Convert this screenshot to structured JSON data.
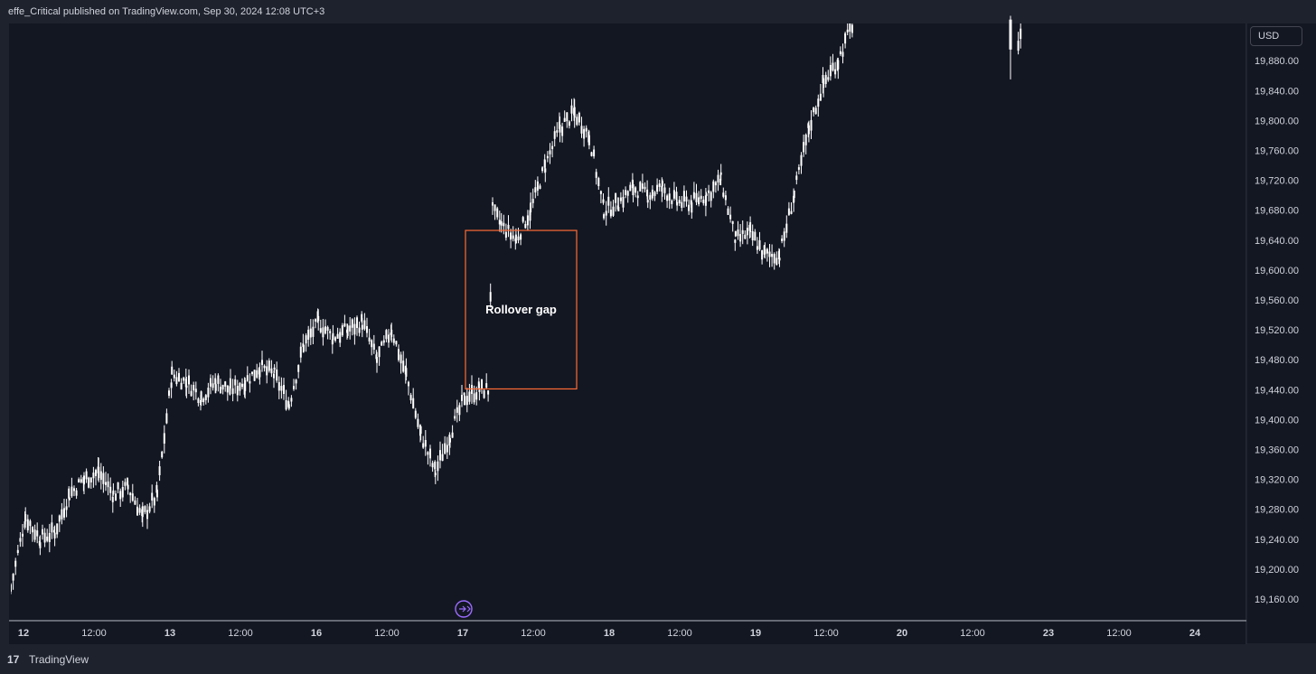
{
  "header": {
    "published_text": "effe_Critical published on TradingView.com, Sep 30, 2024 12:08 UTC+3"
  },
  "currency_label": "USD",
  "footer": {
    "logo_glyph": "17",
    "brand": "TradingView"
  },
  "colors": {
    "background": "#131722",
    "frame": "#1e222d",
    "candle": "#ffffff",
    "annotation_border": "#ff6b35",
    "text": "#d1d4dc",
    "marker": "#9c6bff"
  },
  "chart_data": {
    "type": "candlestick",
    "title": "",
    "xlabel": "",
    "ylabel": "",
    "y_ticks": [
      "19,160.00",
      "19,200.00",
      "19,240.00",
      "19,280.00",
      "19,320.00",
      "19,360.00",
      "19,400.00",
      "19,440.00",
      "19,480.00",
      "19,520.00",
      "19,560.00",
      "19,600.00",
      "19,640.00",
      "19,680.00",
      "19,720.00",
      "19,760.00",
      "19,800.00",
      "19,840.00",
      "19,880.00"
    ],
    "ylim": [
      19135,
      19930
    ],
    "x_ticks": [
      "12",
      "12:00",
      "13",
      "12:00",
      "16",
      "12:00",
      "17",
      "12:00",
      "18",
      "12:00",
      "19",
      "12:00",
      "20",
      "12:00",
      "23",
      "12:00",
      "24"
    ],
    "grid": false,
    "price_path": [
      [
        0,
        19175
      ],
      [
        1,
        19270
      ],
      [
        2,
        19240
      ],
      [
        3,
        19250
      ],
      [
        4,
        19300
      ],
      [
        5,
        19320
      ],
      [
        6,
        19330
      ],
      [
        7,
        19300
      ],
      [
        8,
        19310
      ],
      [
        9,
        19270
      ],
      [
        10,
        19300
      ],
      [
        11,
        19460
      ],
      [
        12,
        19450
      ],
      [
        13,
        19430
      ],
      [
        14,
        19450
      ],
      [
        15,
        19440
      ],
      [
        16,
        19450
      ],
      [
        17,
        19470
      ],
      [
        18,
        19460
      ],
      [
        19,
        19420
      ],
      [
        20,
        19500
      ],
      [
        21,
        19530
      ],
      [
        22,
        19510
      ],
      [
        23,
        19520
      ],
      [
        24,
        19530
      ],
      [
        25,
        19480
      ],
      [
        26,
        19520
      ],
      [
        27,
        19460
      ],
      [
        28,
        19380
      ],
      [
        29,
        19330
      ],
      [
        30,
        19380
      ],
      [
        31,
        19430
      ],
      [
        32,
        19440
      ],
      [
        32.6,
        19440
      ],
      [
        32.9,
        19680
      ],
      [
        33.5,
        19660
      ],
      [
        34.5,
        19640
      ],
      [
        35.5,
        19680
      ],
      [
        36.5,
        19740
      ],
      [
        37.5,
        19790
      ],
      [
        38.5,
        19810
      ],
      [
        39.5,
        19780
      ],
      [
        40.5,
        19680
      ],
      [
        41.5,
        19690
      ],
      [
        42.5,
        19710
      ],
      [
        43.5,
        19700
      ],
      [
        44.5,
        19710
      ],
      [
        45.5,
        19690
      ],
      [
        46.5,
        19690
      ],
      [
        47.5,
        19700
      ],
      [
        48.5,
        19720
      ],
      [
        49.5,
        19640
      ],
      [
        50.5,
        19650
      ],
      [
        51.5,
        19620
      ],
      [
        52.5,
        19620
      ],
      [
        53.5,
        19700
      ],
      [
        54.5,
        19790
      ],
      [
        55.5,
        19850
      ],
      [
        56.5,
        19880
      ],
      [
        57.5,
        19930
      ],
      [
        68.8,
        19900
      ],
      [
        69.0,
        19910
      ]
    ],
    "annotation": {
      "label": "Rollover gap",
      "price_top": 19653,
      "price_bottom": 19441,
      "session_start": 33.2,
      "session_end": 40.5
    }
  }
}
